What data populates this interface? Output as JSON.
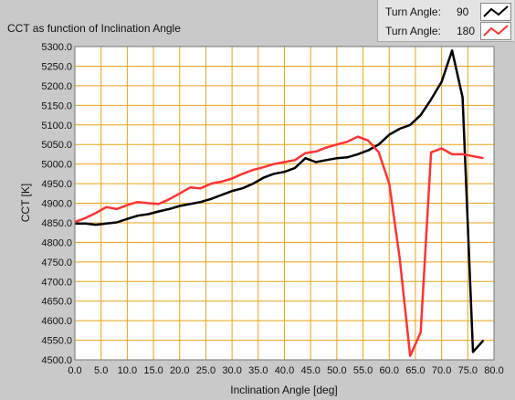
{
  "chart_data": {
    "type": "line",
    "title": "CCT as function of Inclination Angle",
    "xlabel": "Inclination Angle [deg]",
    "ylabel": "CCT [K]",
    "xlim": [
      0,
      80
    ],
    "ylim": [
      4500,
      5300
    ],
    "grid": true,
    "legend_position": "top-right",
    "x_ticks": [
      "0.0",
      "5.0",
      "10.0",
      "15.0",
      "20.0",
      "25.0",
      "30.0",
      "35.0",
      "40.0",
      "45.0",
      "50.0",
      "55.0",
      "60.0",
      "65.0",
      "70.0",
      "75.0",
      "80.0"
    ],
    "y_ticks": [
      "4500.0",
      "4550.0",
      "4600.0",
      "4650.0",
      "4700.0",
      "4750.0",
      "4800.0",
      "4850.0",
      "4900.0",
      "4950.0",
      "5000.0",
      "5050.0",
      "5100.0",
      "5150.0",
      "5200.0",
      "5250.0",
      "5300.0"
    ],
    "legend_label": "Turn Angle:",
    "series": [
      {
        "name": "90",
        "color": "#000000",
        "x": [
          0,
          2,
          4,
          6,
          8,
          10,
          12,
          14,
          16,
          18,
          20,
          22,
          24,
          26,
          28,
          30,
          32,
          34,
          36,
          38,
          40,
          42,
          44,
          46,
          48,
          50,
          52,
          54,
          56,
          58,
          60,
          62,
          64,
          66,
          68,
          70,
          72,
          74,
          76,
          78
        ],
        "y": [
          4848,
          4848,
          4845,
          4848,
          4851,
          4860,
          4868,
          4872,
          4879,
          4885,
          4893,
          4898,
          4903,
          4911,
          4921,
          4931,
          4938,
          4950,
          4965,
          4975,
          4980,
          4990,
          5015,
          5005,
          5010,
          5015,
          5017,
          5025,
          5035,
          5050,
          5075,
          5090,
          5100,
          5125,
          5165,
          5210,
          5290,
          5170,
          4520,
          4550
        ]
      },
      {
        "name": "180",
        "color": "#ff3333",
        "x": [
          0,
          2,
          4,
          6,
          8,
          10,
          12,
          14,
          16,
          18,
          20,
          22,
          24,
          26,
          28,
          30,
          32,
          34,
          36,
          38,
          40,
          42,
          44,
          46,
          48,
          50,
          52,
          54,
          56,
          58,
          60,
          62,
          64,
          66,
          68,
          70,
          72,
          74,
          76,
          78
        ],
        "y": [
          4852,
          4862,
          4875,
          4890,
          4885,
          4895,
          4903,
          4900,
          4898,
          4910,
          4925,
          4940,
          4938,
          4950,
          4955,
          4963,
          4975,
          4985,
          4992,
          5000,
          5005,
          5010,
          5028,
          5032,
          5042,
          5050,
          5057,
          5070,
          5060,
          5030,
          4950,
          4760,
          4510,
          4570,
          5030,
          5040,
          5025,
          5025,
          5020,
          5015
        ]
      }
    ]
  }
}
